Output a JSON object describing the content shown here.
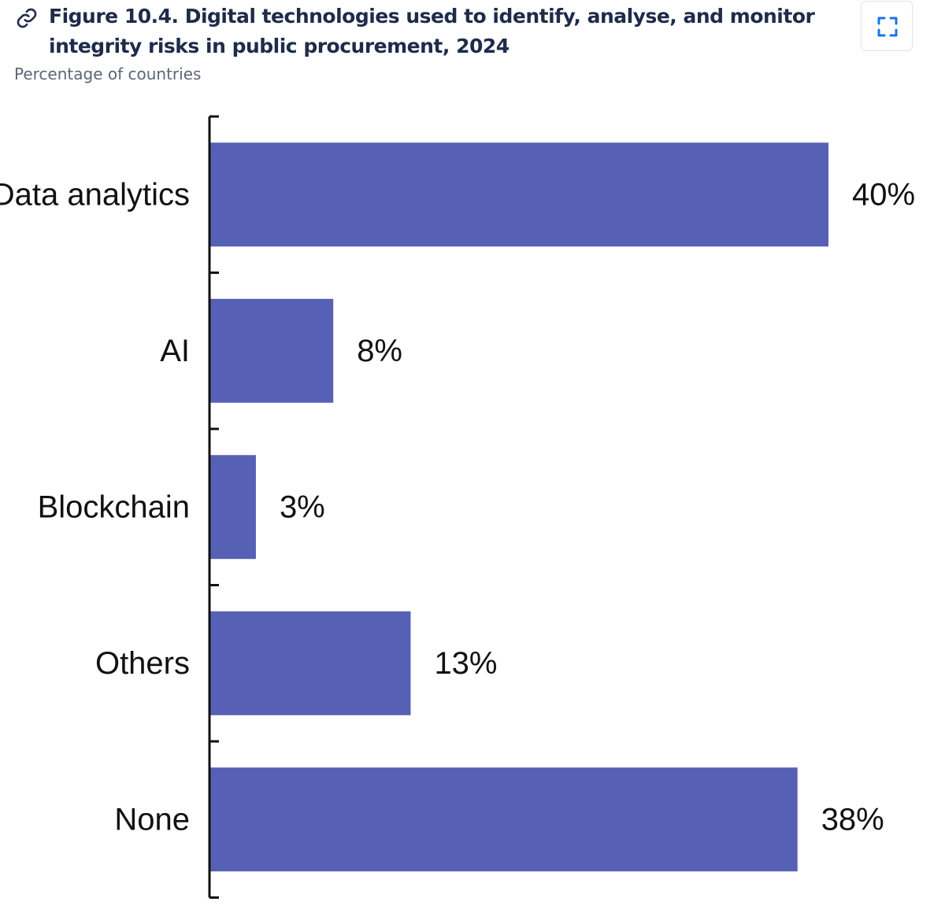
{
  "figure": {
    "title": "Figure 10.4. Digital technologies used to identify, analyse, and monitor integrity risks in public procurement, 2024",
    "subtitle": "Percentage of countries",
    "link_icon": "link-icon",
    "expand_icon": "expand-icon"
  },
  "colors": {
    "bar": "#5660b5",
    "axis": "#111111",
    "title": "#1e2b4a",
    "subtitle": "#5d6675",
    "expand_icon": "#1a73e8"
  },
  "chart_data": {
    "type": "bar",
    "orientation": "horizontal",
    "title": "Digital technologies used to identify, analyse, and monitor integrity risks in public procurement, 2024",
    "ylabel": "",
    "xlabel": "Percentage of countries",
    "categories": [
      "Data analytics",
      "AI",
      "Blockchain",
      "Others",
      "None"
    ],
    "values": [
      40,
      8,
      3,
      13,
      38
    ],
    "value_labels": [
      "40%",
      "8%",
      "3%",
      "13%",
      "38%"
    ],
    "xlim": [
      0,
      40
    ],
    "grid": false,
    "legend": "none"
  }
}
